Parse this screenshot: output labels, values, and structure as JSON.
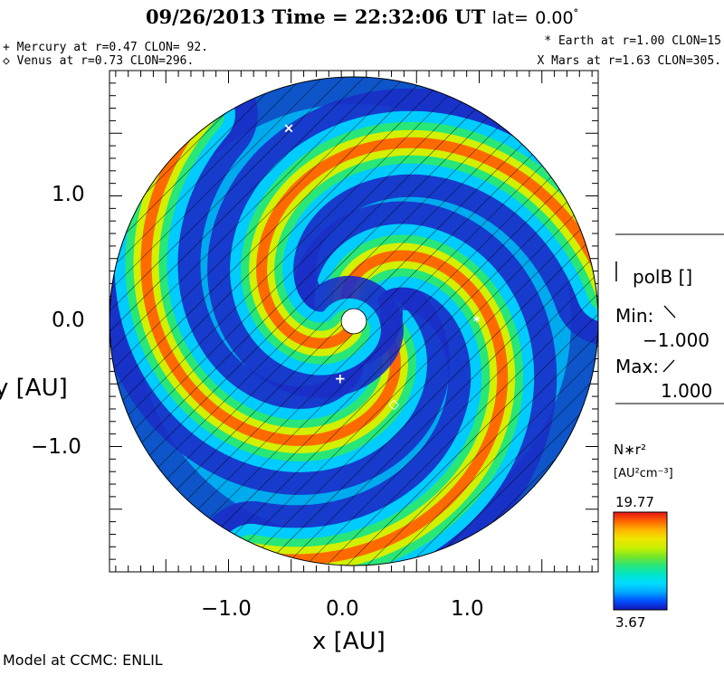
{
  "header": {
    "date": "09/26/2013",
    "time_label": "Time =",
    "time": "22:32:06 UT",
    "lat_label": "lat=",
    "lat_value": "0.00",
    "lat_unit": "°"
  },
  "planets": {
    "mercury": "+ Mercury at r=0.47 CLON= 92.",
    "venus": "◇ Venus at r=0.73 CLON=296.",
    "earth": "* Earth at  r=1.00 CLON=15",
    "mars": "X Mars at r=1.63 CLON=305."
  },
  "side_panel": {
    "polarity_label": "polB []",
    "min_label": "Min:",
    "min_value": "−1.000",
    "max_label": "Max:",
    "max_value": "1.000",
    "quantity": "N∗r²",
    "units": "[AU²cm⁻³]",
    "cbar_max": "19.77",
    "cbar_min": "3.67"
  },
  "footer": {
    "model": "Model at CCMC: ENLIL"
  },
  "colors": {
    "colorbar": [
      "#1414b4",
      "#0050ff",
      "#00aaff",
      "#00dcff",
      "#00e6c8",
      "#28e678",
      "#78e628",
      "#c8f000",
      "#f0e600",
      "#ffb400",
      "#ff6400",
      "#e61414"
    ]
  },
  "chart_data": {
    "type": "heatmap",
    "title": "09/26/2013 Time = 22:32:06 UT lat= 0.00°",
    "xlabel": "x [AU]",
    "ylabel": "y [AU]",
    "xlim": [
      -1.95,
      1.95
    ],
    "ylim": [
      -1.95,
      1.95
    ],
    "xticks": [
      -1.0,
      0.0,
      1.0
    ],
    "xtick_labels": [
      "−1.0",
      "0.0",
      "1.0"
    ],
    "yticks": [
      -1.0,
      0.0,
      1.0
    ],
    "ytick_labels": [
      "−1.0",
      "0.0",
      "1.0"
    ],
    "domain_radius": 1.95,
    "sun_radius": 0.1,
    "colorbar_range": [
      3.67,
      19.77
    ],
    "bodies": [
      {
        "name": "Mercury",
        "symbol": "+",
        "x": -0.11,
        "y": -0.46
      },
      {
        "name": "Venus",
        "symbol": "◇",
        "x": 0.32,
        "y": -0.66
      },
      {
        "name": "Earth",
        "symbol": "*",
        "x": 0.98,
        "y": 0.0
      },
      {
        "name": "Mars",
        "symbol": "×",
        "x": -0.52,
        "y": 1.54
      }
    ]
  }
}
